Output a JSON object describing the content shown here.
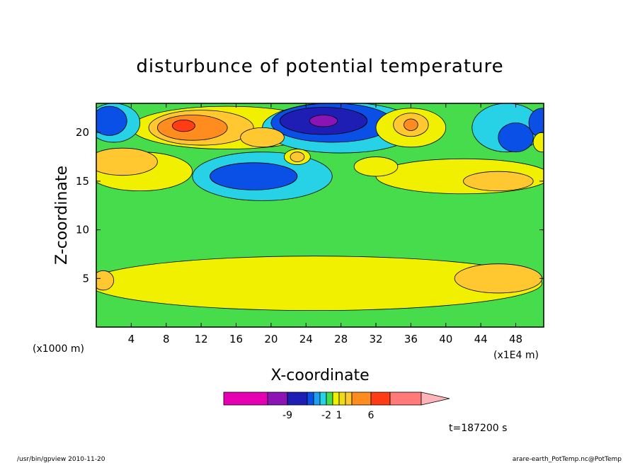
{
  "chart_data": {
    "type": "heatmap",
    "title": "disturbunce of potential temperature",
    "xlabel": "X-coordinate",
    "ylabel": "Z-coordinate",
    "x_unit_label": "(x1000 m)",
    "x_scale_label": "(x1E4 m)",
    "xlim": [
      0,
      51.2
    ],
    "ylim": [
      0,
      23
    ],
    "x_ticks": [
      "4",
      "8",
      "12",
      "16",
      "20",
      "24",
      "28",
      "32",
      "36",
      "40",
      "44",
      "48"
    ],
    "y_ticks": [
      "5",
      "10",
      "15",
      "20"
    ],
    "colorbar": {
      "colors": [
        "#e600b4",
        "#8c14b4",
        "#1e1eb4",
        "#0a50e6",
        "#1ea0f0",
        "#28d2e6",
        "#46dc4b",
        "#f0f000",
        "#f0dc14",
        "#ffc830",
        "#ff8c1e",
        "#ff3c14",
        "#ff7a78",
        "#ffb4b9"
      ],
      "tick_labels": [
        "-9",
        "-2",
        "1",
        "6"
      ]
    },
    "time_label": "t=187200 s",
    "blobs": [
      {
        "x": 25,
        "y": 4.5,
        "rx": 26,
        "ry": 2.8,
        "level": "yellow"
      },
      {
        "x": 46,
        "y": 5,
        "rx": 5,
        "ry": 1.5,
        "level": "orange-light"
      },
      {
        "x": 0.8,
        "y": 4.8,
        "rx": 1.2,
        "ry": 1,
        "level": "orange-light"
      },
      {
        "x": 42,
        "y": 15.5,
        "rx": 10,
        "ry": 1.8,
        "level": "yellow"
      },
      {
        "x": 46,
        "y": 15,
        "rx": 4,
        "ry": 1,
        "level": "orange-light"
      },
      {
        "x": 5,
        "y": 16,
        "rx": 6,
        "ry": 2,
        "level": "yellow"
      },
      {
        "x": 3,
        "y": 17,
        "rx": 4,
        "ry": 1.4,
        "level": "orange-light"
      },
      {
        "x": 19,
        "y": 15.5,
        "rx": 8,
        "ry": 2.5,
        "level": "cyan"
      },
      {
        "x": 18,
        "y": 15.5,
        "rx": 5,
        "ry": 1.4,
        "level": "blue"
      },
      {
        "x": 15,
        "y": 20.5,
        "rx": 11,
        "ry": 2.2,
        "level": "yellow"
      },
      {
        "x": 12,
        "y": 20.5,
        "rx": 6,
        "ry": 1.8,
        "level": "orange-light"
      },
      {
        "x": 11,
        "y": 20.5,
        "rx": 4,
        "ry": 1.3,
        "level": "orange"
      },
      {
        "x": 10,
        "y": 20.7,
        "rx": 1.3,
        "ry": 0.6,
        "level": "red"
      },
      {
        "x": 28,
        "y": 20.5,
        "rx": 9,
        "ry": 2.6,
        "level": "cyan"
      },
      {
        "x": 27,
        "y": 21,
        "rx": 7,
        "ry": 2,
        "level": "blue"
      },
      {
        "x": 26,
        "y": 21.2,
        "rx": 5,
        "ry": 1.4,
        "level": "navy"
      },
      {
        "x": 26,
        "y": 21.2,
        "rx": 1.6,
        "ry": 0.6,
        "level": "purple"
      },
      {
        "x": 36,
        "y": 20.5,
        "rx": 4,
        "ry": 2,
        "level": "yellow"
      },
      {
        "x": 36,
        "y": 20.8,
        "rx": 2,
        "ry": 1.2,
        "level": "orange-light"
      },
      {
        "x": 36,
        "y": 20.8,
        "rx": 0.8,
        "ry": 0.6,
        "level": "orange"
      },
      {
        "x": 2,
        "y": 21,
        "rx": 3,
        "ry": 2,
        "level": "cyan"
      },
      {
        "x": 1.5,
        "y": 21.2,
        "rx": 2,
        "ry": 1.5,
        "level": "blue"
      },
      {
        "x": 47,
        "y": 20.5,
        "rx": 4,
        "ry": 2.5,
        "level": "cyan"
      },
      {
        "x": 48,
        "y": 19.5,
        "rx": 2,
        "ry": 1.5,
        "level": "blue"
      },
      {
        "x": 51,
        "y": 21,
        "rx": 1.5,
        "ry": 1.5,
        "level": "blue"
      },
      {
        "x": 51,
        "y": 19,
        "rx": 1,
        "ry": 1,
        "level": "yellow"
      },
      {
        "x": 19,
        "y": 19.5,
        "rx": 2.5,
        "ry": 1,
        "level": "orange-light"
      },
      {
        "x": 23,
        "y": 17.5,
        "rx": 1.5,
        "ry": 0.8,
        "level": "yellow"
      },
      {
        "x": 23,
        "y": 17.5,
        "rx": 0.8,
        "ry": 0.5,
        "level": "orange-light"
      },
      {
        "x": 32,
        "y": 16.5,
        "rx": 2.5,
        "ry": 1,
        "level": "yellow"
      }
    ]
  },
  "footer": {
    "left": "/usr/bin/gpview   2010-11-20",
    "right": "arare-earth_PotTemp.nc@PotTemp"
  }
}
